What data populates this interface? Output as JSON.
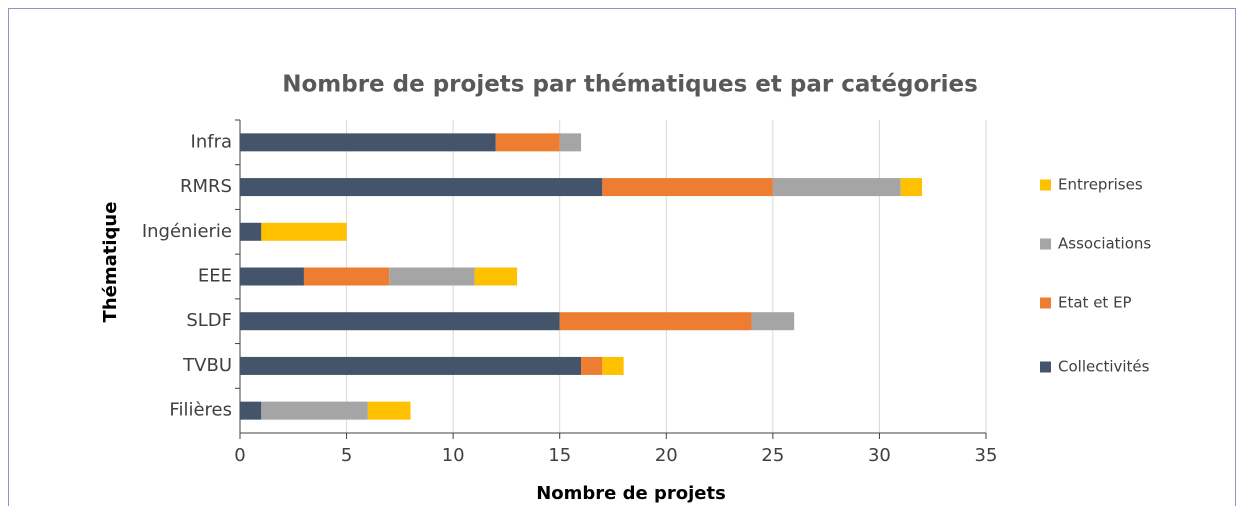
{
  "chart_data": {
    "type": "stacked_barh",
    "title": "Nombre de projets par thématiques et par catégories",
    "xlabel": "Nombre de projets",
    "ylabel": "Thématique",
    "categories": [
      "Infra",
      "RMRS",
      "Ingénierie",
      "EEE",
      "SLDF",
      "TVBU",
      "Filières"
    ],
    "series": [
      {
        "name": "Collectivités",
        "color": "#44546a",
        "values": [
          12,
          17,
          1,
          3,
          15,
          16,
          1
        ]
      },
      {
        "name": "Etat et EP",
        "color": "#ed7d31",
        "values": [
          3,
          8,
          0,
          4,
          9,
          1,
          0
        ]
      },
      {
        "name": "Associations",
        "color": "#a5a5a5",
        "values": [
          1,
          6,
          0,
          4,
          2,
          0,
          5
        ]
      },
      {
        "name": "Entreprises",
        "color": "#ffc000",
        "values": [
          0,
          1,
          4,
          2,
          0,
          1,
          2
        ]
      }
    ],
    "xlim": [
      0,
      35
    ],
    "xticks": [
      0,
      5,
      10,
      15,
      20,
      25,
      30,
      35
    ],
    "grid": true,
    "legend": "right"
  }
}
